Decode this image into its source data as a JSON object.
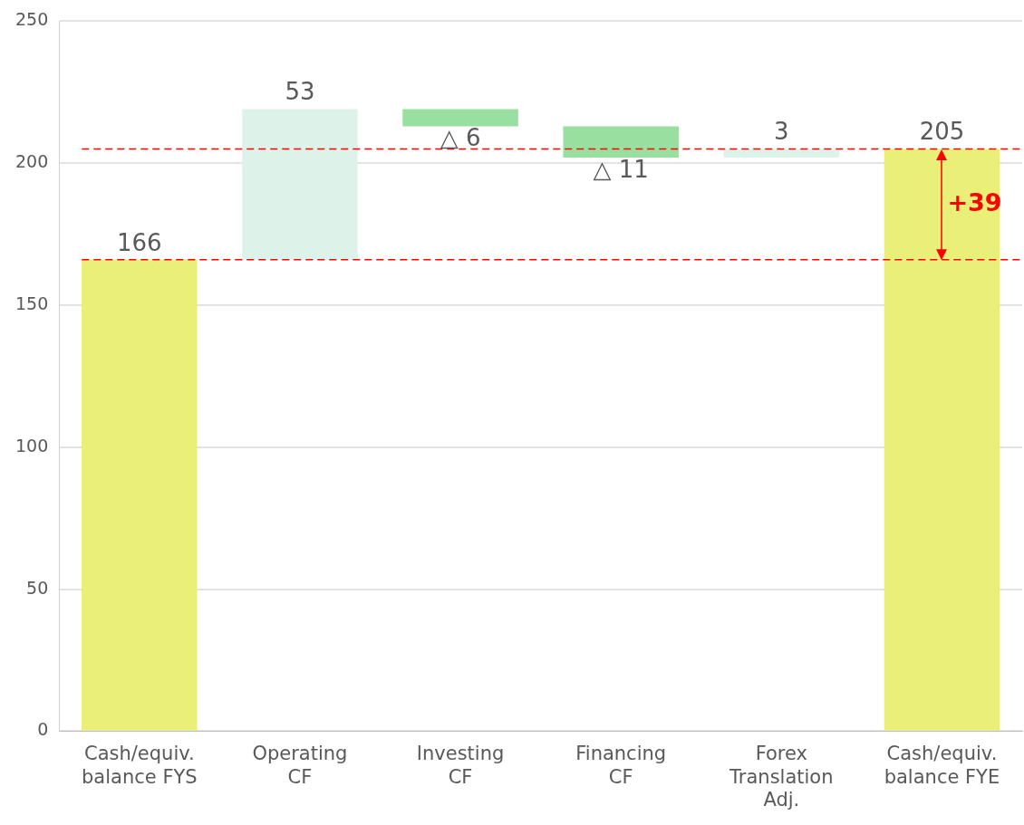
{
  "chart_data": {
    "type": "bar",
    "categories": [
      "Cash/equiv. balance FYS",
      "Operating CF",
      "Investing CF",
      "Financing CF",
      "Forex Translation Adj.",
      "Cash/equiv. balance FYE"
    ],
    "values": [
      166,
      53,
      -6,
      -11,
      3,
      205
    ],
    "base": [
      0,
      166,
      219,
      213,
      202,
      0
    ],
    "colors": [
      "#eaef77",
      "#ddf2e9",
      "#99df9f",
      "#99df9f",
      "#ddf2e9",
      "#eaef77"
    ],
    "value_labels": [
      "166",
      "53",
      "△ 6",
      "△ 11",
      "3",
      "205"
    ],
    "ylim": [
      0,
      250
    ],
    "yticks": [
      0,
      50,
      100,
      150,
      200,
      250
    ],
    "grid": "y",
    "legend": false,
    "ref_lines": [
      {
        "axis": "y",
        "value": 166,
        "color": "#ff0000",
        "line_style": "dashed"
      },
      {
        "axis": "y",
        "value": 205,
        "color": "#ff0000",
        "line_style": "dashed"
      }
    ],
    "annotations": [
      "+39"
    ]
  }
}
